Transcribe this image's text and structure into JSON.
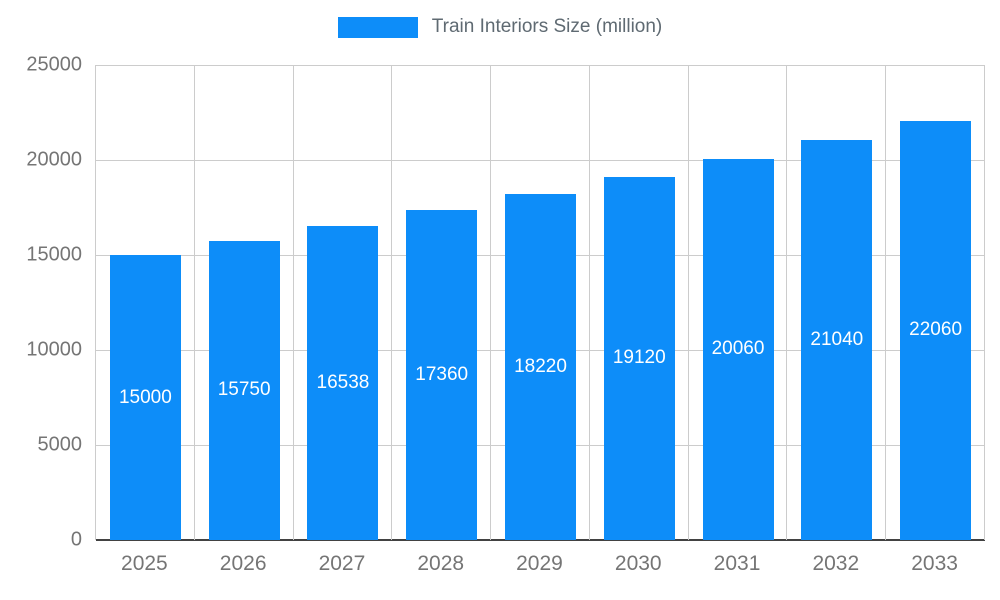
{
  "chart_data": {
    "type": "bar",
    "title": "Train Interiors Size (million)",
    "categories": [
      "2025",
      "2026",
      "2027",
      "2028",
      "2029",
      "2030",
      "2031",
      "2032",
      "2033"
    ],
    "series": [
      {
        "name": "Train Interiors Size (million)",
        "values": [
          15000,
          15750,
          16538,
          17360,
          18220,
          19120,
          20060,
          21040,
          22060
        ]
      }
    ],
    "data_labels": [
      "15000",
      "15750",
      "16538",
      "17360",
      "18220",
      "19120",
      "20060",
      "21040",
      "22060"
    ],
    "xlabel": "",
    "ylabel": "",
    "ylim": [
      0,
      25000
    ],
    "yticks": [
      0,
      5000,
      10000,
      15000,
      20000,
      25000
    ],
    "grid": true,
    "legend_position": "top",
    "bar_color": "#0d8df9",
    "bar_label_color": "#ffffff",
    "axis_text_color": "#757575",
    "grid_color": "#cccccc",
    "axis_line_color": "#424242"
  }
}
